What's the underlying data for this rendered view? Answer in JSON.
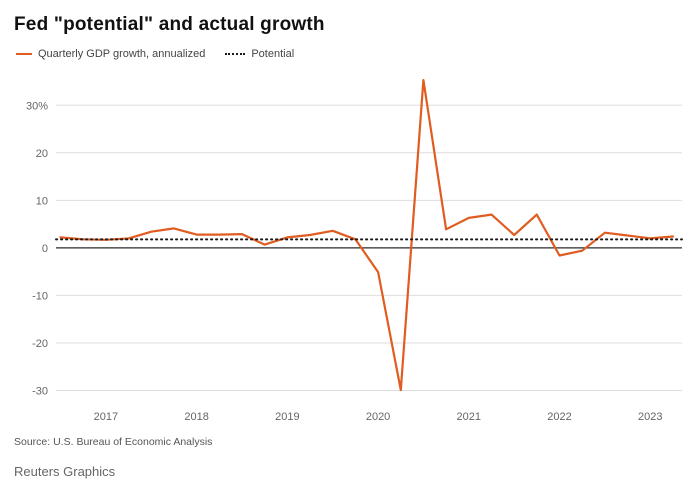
{
  "title": "Fed \"potential\" and actual growth",
  "legend": [
    {
      "label": "Quarterly GDP growth, annualized",
      "color": "#e05c20",
      "style": "solid"
    },
    {
      "label": "Potential",
      "color": "#1a1a1a",
      "style": "dotted"
    }
  ],
  "source": "Source: U.S. Bureau of Economic Analysis",
  "footer": "Reuters Graphics",
  "chart_data": {
    "type": "line",
    "title": "Fed \"potential\" and actual growth",
    "x_unit": "year_quarterly",
    "x": [
      2016.5,
      2016.75,
      2017.0,
      2017.25,
      2017.5,
      2017.75,
      2018.0,
      2018.25,
      2018.5,
      2018.75,
      2019.0,
      2019.25,
      2019.5,
      2019.75,
      2020.0,
      2020.25,
      2020.5,
      2020.75,
      2021.0,
      2021.25,
      2021.5,
      2021.75,
      2022.0,
      2022.25,
      2022.5,
      2022.75,
      2023.0,
      2023.25
    ],
    "series": [
      {
        "name": "Quarterly GDP growth, annualized",
        "color": "#e05c20",
        "style": "solid",
        "values": [
          2.2,
          1.8,
          1.7,
          2.0,
          3.4,
          4.1,
          2.8,
          2.8,
          2.9,
          0.7,
          2.2,
          2.7,
          3.6,
          1.8,
          -5.1,
          -29.9,
          35.3,
          3.9,
          6.3,
          7.0,
          2.7,
          7.0,
          -1.6,
          -0.6,
          3.2,
          2.6,
          2.0,
          2.4
        ]
      },
      {
        "name": "Potential",
        "color": "#1a1a1a",
        "style": "dotted",
        "constant_value": 1.8
      }
    ],
    "xticks": [
      2017,
      2018,
      2019,
      2020,
      2021,
      2022,
      2023
    ],
    "xtick_labels": [
      "2017",
      "2018",
      "2019",
      "2020",
      "2021",
      "2022",
      "2023"
    ],
    "yticks": [
      30,
      20,
      10,
      0,
      -10,
      -20,
      -30
    ],
    "ytick_labels": [
      "30%",
      "20",
      "10",
      "0",
      "-10",
      "-20",
      "-30"
    ],
    "xlim": [
      2016.45,
      2023.35
    ],
    "ylim": [
      -32,
      37
    ],
    "grid": "horizontal",
    "legend_position": "top-left"
  }
}
